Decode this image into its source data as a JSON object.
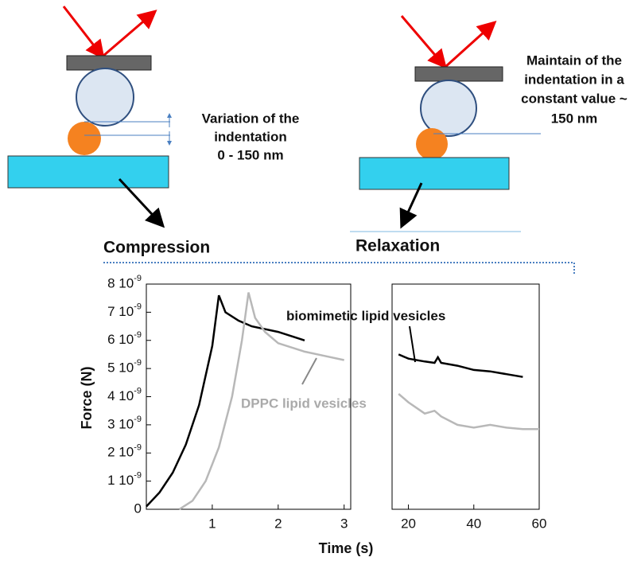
{
  "diagram": {
    "left_caption": [
      "Variation of the",
      "indentation",
      "0 - 150 nm"
    ],
    "right_caption": [
      "Maintain of the",
      "indentation in a",
      "constant value ~",
      "150 nm"
    ],
    "left_label": "Compression",
    "right_label": "Relaxation"
  },
  "chart_data": {
    "type": "line",
    "x_label": "Time (s)",
    "y_label": "Force (N)",
    "xlim": [
      [
        0,
        3.1
      ],
      [
        15,
        60
      ]
    ],
    "xticks": [
      [
        1,
        2,
        3
      ],
      [
        20,
        40,
        60
      ]
    ],
    "ylim": [
      0,
      8e-09
    ],
    "yticks": [
      0,
      {
        "value": 1e-09,
        "label": "1 10-9"
      },
      {
        "value": 2e-09,
        "label": "2 10-9"
      },
      {
        "value": 3e-09,
        "label": "3 10-9"
      },
      {
        "value": 4e-09,
        "label": "4 10-9"
      },
      {
        "value": 5e-09,
        "label": "5 10-9"
      },
      {
        "value": 6e-09,
        "label": "6 10-9"
      },
      {
        "value": 7e-09,
        "label": "7 10-9"
      },
      {
        "value": 8e-09,
        "label": "8 10-9"
      }
    ],
    "series": [
      {
        "name": "biomimetic lipid vesicles",
        "color": "#000000",
        "x": [
          0,
          0.2,
          0.4,
          0.6,
          0.8,
          1.0,
          1.1,
          1.2,
          1.4,
          1.6,
          2.0,
          2.4,
          null,
          17,
          20,
          25,
          28,
          29,
          30,
          35,
          40,
          45,
          50,
          55
        ],
        "values": [
          1e-10,
          6e-10,
          1.3e-09,
          2.3e-09,
          3.7e-09,
          5.8e-09,
          7.6e-09,
          7e-09,
          6.7e-09,
          6.5e-09,
          6.3e-09,
          6e-09,
          null,
          5.5e-09,
          5.35e-09,
          5.25e-09,
          5.2e-09,
          5.4e-09,
          5.2e-09,
          5.1e-09,
          4.95e-09,
          4.9e-09,
          4.8e-09,
          4.7e-09
        ]
      },
      {
        "name": "DPPC lipid vesicles",
        "color": "#b8b8b8",
        "x": [
          0.5,
          0.7,
          0.9,
          1.1,
          1.3,
          1.45,
          1.55,
          1.65,
          1.8,
          2.0,
          2.4,
          2.7,
          3.0,
          null,
          17,
          20,
          25,
          28,
          30,
          35,
          40,
          45,
          50,
          55,
          60
        ],
        "values": [
          0,
          3e-10,
          1e-09,
          2.2e-09,
          4e-09,
          6e-09,
          7.7e-09,
          6.8e-09,
          6.3e-09,
          5.9e-09,
          5.6e-09,
          5.45e-09,
          5.3e-09,
          null,
          4.1e-09,
          3.8e-09,
          3.4e-09,
          3.5e-09,
          3.3e-09,
          3e-09,
          2.9e-09,
          3e-09,
          2.9e-09,
          2.85e-09,
          2.85e-09
        ]
      }
    ]
  }
}
